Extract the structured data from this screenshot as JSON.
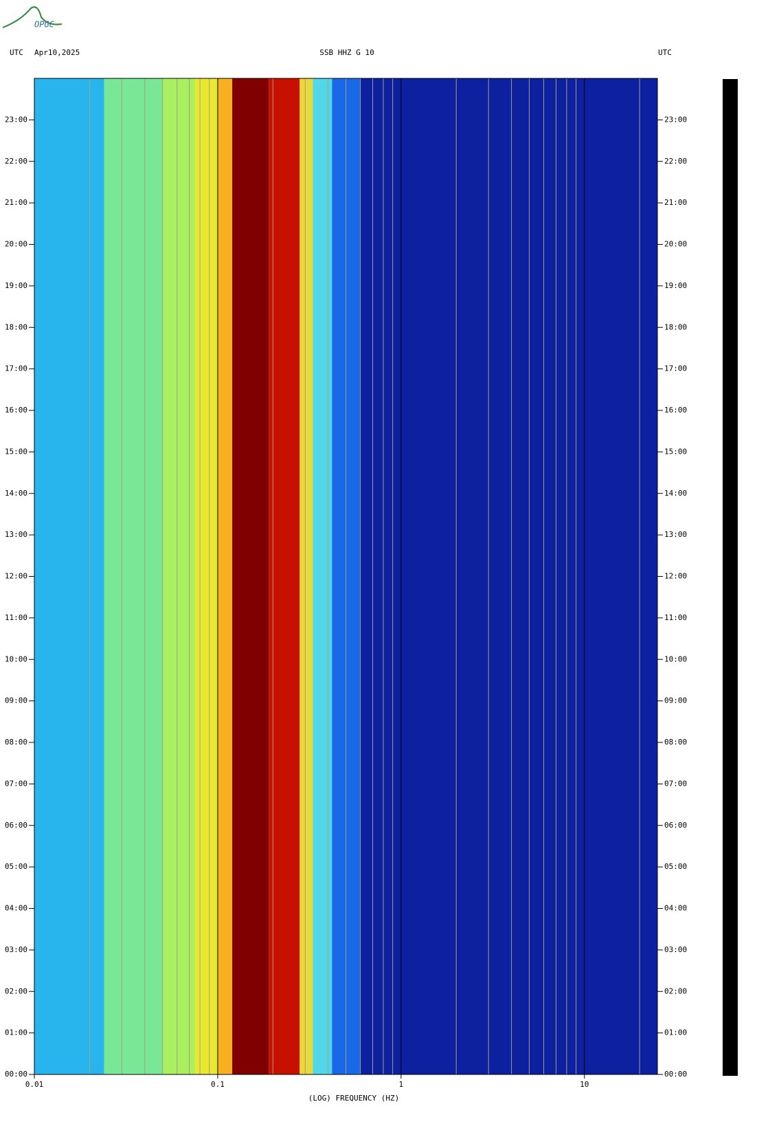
{
  "logo": "OPGC",
  "chart_data": {
    "type": "spectrogram",
    "header_left": "UTC",
    "date": "Apr10,2025",
    "title": "SSB HHZ G 10",
    "header_right": "UTC",
    "x_label": "(LOG) FREQUENCY (HZ)",
    "xscale": "log",
    "xlim": [
      0.01,
      25
    ],
    "xticks": [
      0.01,
      0.1,
      1,
      10
    ],
    "xgrid": [
      0.02,
      0.03,
      0.04,
      0.05,
      0.06,
      0.07,
      0.08,
      0.09,
      0.2,
      0.3,
      0.4,
      0.5,
      0.6,
      0.7,
      0.8,
      0.9,
      2,
      3,
      4,
      5,
      6,
      7,
      8,
      9,
      20
    ],
    "ylim": [
      0,
      24
    ],
    "yticks": [
      {
        "value": 0,
        "label": "00:00"
      },
      {
        "value": 1,
        "label": "01:00"
      },
      {
        "value": 2,
        "label": "02:00"
      },
      {
        "value": 3,
        "label": "03:00"
      },
      {
        "value": 4,
        "label": "04:00"
      },
      {
        "value": 5,
        "label": "05:00"
      },
      {
        "value": 6,
        "label": "06:00"
      },
      {
        "value": 7,
        "label": "07:00"
      },
      {
        "value": 8,
        "label": "08:00"
      },
      {
        "value": 9,
        "label": "09:00"
      },
      {
        "value": 10,
        "label": "10:00"
      },
      {
        "value": 11,
        "label": "11:00"
      },
      {
        "value": 12,
        "label": "12:00"
      },
      {
        "value": 13,
        "label": "13:00"
      },
      {
        "value": 14,
        "label": "14:00"
      },
      {
        "value": 15,
        "label": "15:00"
      },
      {
        "value": 16,
        "label": "16:00"
      },
      {
        "value": 17,
        "label": "17:00"
      },
      {
        "value": 18,
        "label": "18:00"
      },
      {
        "value": 19,
        "label": "19:00"
      },
      {
        "value": 20,
        "label": "20:00"
      },
      {
        "value": 21,
        "label": "21:00"
      },
      {
        "value": 22,
        "label": "22:00"
      },
      {
        "value": 23,
        "label": "23:00"
      }
    ],
    "bands": [
      {
        "xlim": [
          0.01,
          0.024
        ],
        "color": "#28b4ec"
      },
      {
        "xlim": [
          0.024,
          0.05
        ],
        "color": "#78e896"
      },
      {
        "xlim": [
          0.05,
          0.075
        ],
        "color": "#a8f060"
      },
      {
        "xlim": [
          0.075,
          0.1
        ],
        "color": "#e8e830"
      },
      {
        "xlim": [
          0.1,
          0.12
        ],
        "color": "#f8b020"
      },
      {
        "xlim": [
          0.12,
          0.19
        ],
        "color": "#800000"
      },
      {
        "xlim": [
          0.19,
          0.28
        ],
        "color": "#c81000"
      },
      {
        "xlim": [
          0.28,
          0.33
        ],
        "color": "#e8d838"
      },
      {
        "xlim": [
          0.33,
          0.42
        ],
        "color": "#50d8e8"
      },
      {
        "xlim": [
          0.42,
          0.6
        ],
        "color": "#1868e8"
      },
      {
        "xlim": [
          0.6,
          25
        ],
        "color": "#0c20a0"
      }
    ]
  }
}
